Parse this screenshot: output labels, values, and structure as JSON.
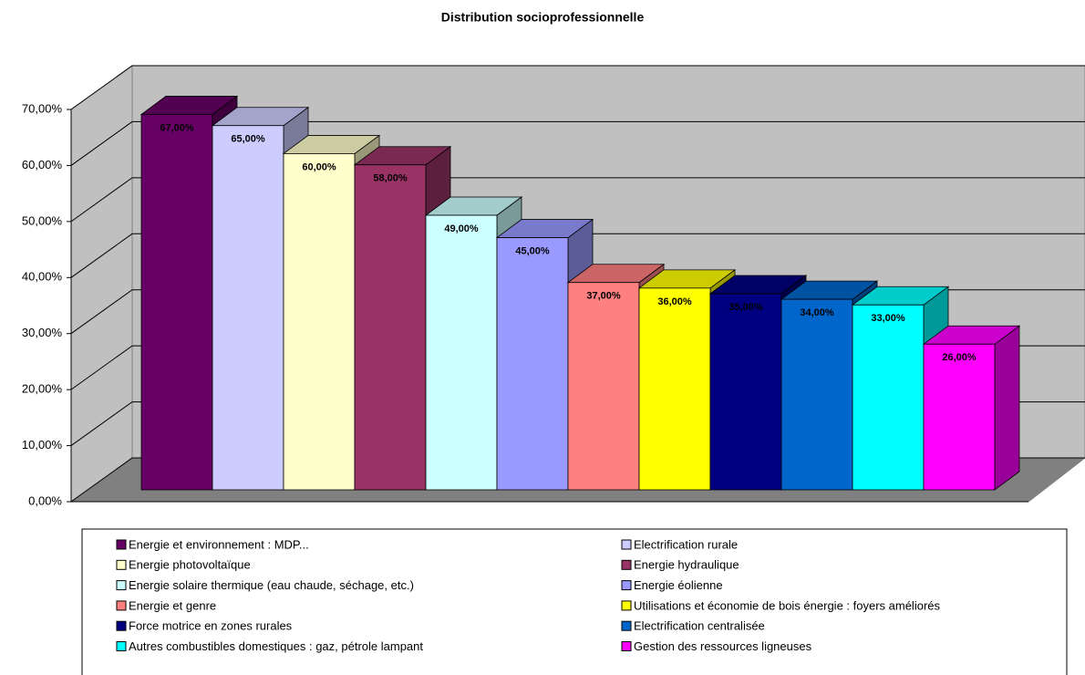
{
  "chart_data": {
    "type": "bar",
    "title": "Distribution socioprofessionnelle",
    "ylim": [
      0,
      70
    ],
    "yticks": [
      {
        "value": 0,
        "label": "0,00%"
      },
      {
        "value": 10,
        "label": "10,00%"
      },
      {
        "value": 20,
        "label": "20,00%"
      },
      {
        "value": 30,
        "label": "30,00%"
      },
      {
        "value": 40,
        "label": "40,00%"
      },
      {
        "value": 50,
        "label": "50,00%"
      },
      {
        "value": 60,
        "label": "60,00%"
      },
      {
        "value": 70,
        "label": "70,00%"
      }
    ],
    "grid": true,
    "legend": "bottom",
    "series": [
      {
        "name": "Energie et environnement : MDP...",
        "color": "#660066",
        "values": [
          67
        ],
        "value_labels": [
          "67,00%"
        ]
      },
      {
        "name": "Electrification rurale",
        "color": "#ccccff",
        "values": [
          65
        ],
        "value_labels": [
          "65,00%"
        ]
      },
      {
        "name": "Energie photovoltaïque",
        "color": "#ffffcc",
        "values": [
          60
        ],
        "value_labels": [
          "60,00%"
        ]
      },
      {
        "name": "Energie hydraulique",
        "color": "#993366",
        "values": [
          58
        ],
        "value_labels": [
          "58,00%"
        ]
      },
      {
        "name": "Energie solaire thermique (eau chaude, séchage, etc.)",
        "color": "#ccffff",
        "values": [
          49
        ],
        "value_labels": [
          "49,00%"
        ]
      },
      {
        "name": "Energie éolienne",
        "color": "#9999ff",
        "values": [
          45
        ],
        "value_labels": [
          "45,00%"
        ]
      },
      {
        "name": "Energie et genre",
        "color": "#ff8080",
        "values": [
          37
        ],
        "value_labels": [
          "37,00%"
        ]
      },
      {
        "name": "Utilisations et économie de bois énergie : foyers améliorés",
        "color": "#ffff00",
        "values": [
          36
        ],
        "value_labels": [
          "36,00%"
        ]
      },
      {
        "name": "Force motrice en zones rurales",
        "color": "#000080",
        "values": [
          35
        ],
        "value_labels": [
          "35,00%"
        ]
      },
      {
        "name": "Electrification centralisée",
        "color": "#0066cc",
        "values": [
          34
        ],
        "value_labels": [
          "34,00%"
        ]
      },
      {
        "name": "Autres combustibles domestiques : gaz, pétrole lampant",
        "color": "#00ffff",
        "values": [
          33
        ],
        "value_labels": [
          "33,00%"
        ]
      },
      {
        "name": "Gestion des ressources ligneuses",
        "color": "#ff00ff",
        "values": [
          26
        ],
        "value_labels": [
          "26,00%"
        ]
      }
    ]
  }
}
